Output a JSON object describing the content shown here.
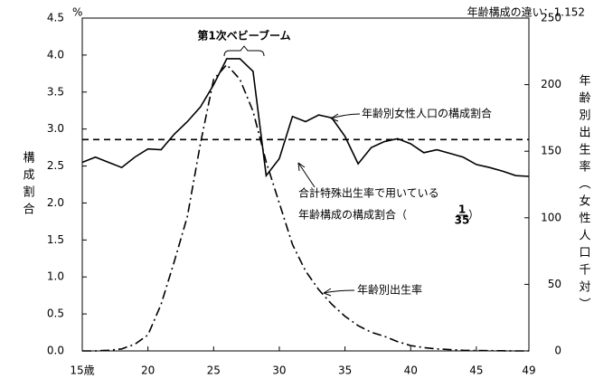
{
  "chart_data": {
    "type": "line",
    "y_unit": "%",
    "note": "年齢構成の違い：1.152",
    "y_label": "構成割合",
    "y2_label": "年齢別出生率（女性人口千対）",
    "annotations": [
      "第1次ベビーブーム",
      "年齢別女性人口の構成割合",
      "合計特殊出生率で用いている",
      "年齢構成の構成割合（",
      "1",
      "35",
      "）",
      "年齢別出生率"
    ],
    "x": [
      15,
      16,
      17,
      18,
      19,
      20,
      21,
      22,
      23,
      24,
      25,
      26,
      27,
      28,
      29,
      30,
      31,
      32,
      33,
      34,
      35,
      36,
      37,
      38,
      39,
      40,
      41,
      42,
      43,
      44,
      45,
      46,
      47,
      48,
      49
    ],
    "xlim": [
      15,
      49
    ],
    "xticks": [
      {
        "value": 15,
        "label": "15歳"
      },
      20,
      25,
      30,
      35,
      40,
      45,
      49
    ],
    "ylim": [
      0,
      4.5
    ],
    "yticks": [
      {
        "value": 0,
        "label": "0.0"
      },
      0.5,
      {
        "value": 1,
        "label": "1.0"
      },
      1.5,
      {
        "value": 2,
        "label": "2.0"
      },
      2.5,
      {
        "value": 3,
        "label": "3.0"
      },
      3.5,
      {
        "value": 4,
        "label": "4.0"
      },
      4.5
    ],
    "y2lim": [
      0,
      250
    ],
    "y2ticks": [
      0,
      50,
      100,
      150,
      200,
      250
    ],
    "reference_value": 2.857,
    "series": [
      {
        "name": "年齢別女性人口の構成割合",
        "color": "#000000",
        "dash": "solid",
        "values": [
          2.55,
          2.62,
          2.55,
          2.48,
          2.62,
          2.73,
          2.72,
          2.93,
          3.1,
          3.3,
          3.6,
          3.95,
          3.95,
          3.78,
          2.37,
          2.6,
          3.17,
          3.1,
          3.19,
          3.15,
          2.9,
          2.53,
          2.75,
          2.83,
          2.87,
          2.8,
          2.68,
          2.72,
          2.67,
          2.62,
          2.52,
          2.48,
          2.43,
          2.37,
          2.36
        ]
      },
      {
        "name": "年齢別出生率",
        "color": "#000000",
        "dash": "dashdot",
        "axis": "y2",
        "values": [
          0,
          0,
          0.5,
          1.5,
          5,
          12,
          35,
          67,
          101,
          156,
          204,
          215,
          204,
          180,
          142,
          111,
          80,
          60,
          46,
          35,
          26,
          19,
          14,
          11,
          7,
          4,
          2.5,
          1.5,
          1,
          0.5,
          0.3,
          0.2,
          0.1,
          0,
          0
        ]
      }
    ]
  }
}
